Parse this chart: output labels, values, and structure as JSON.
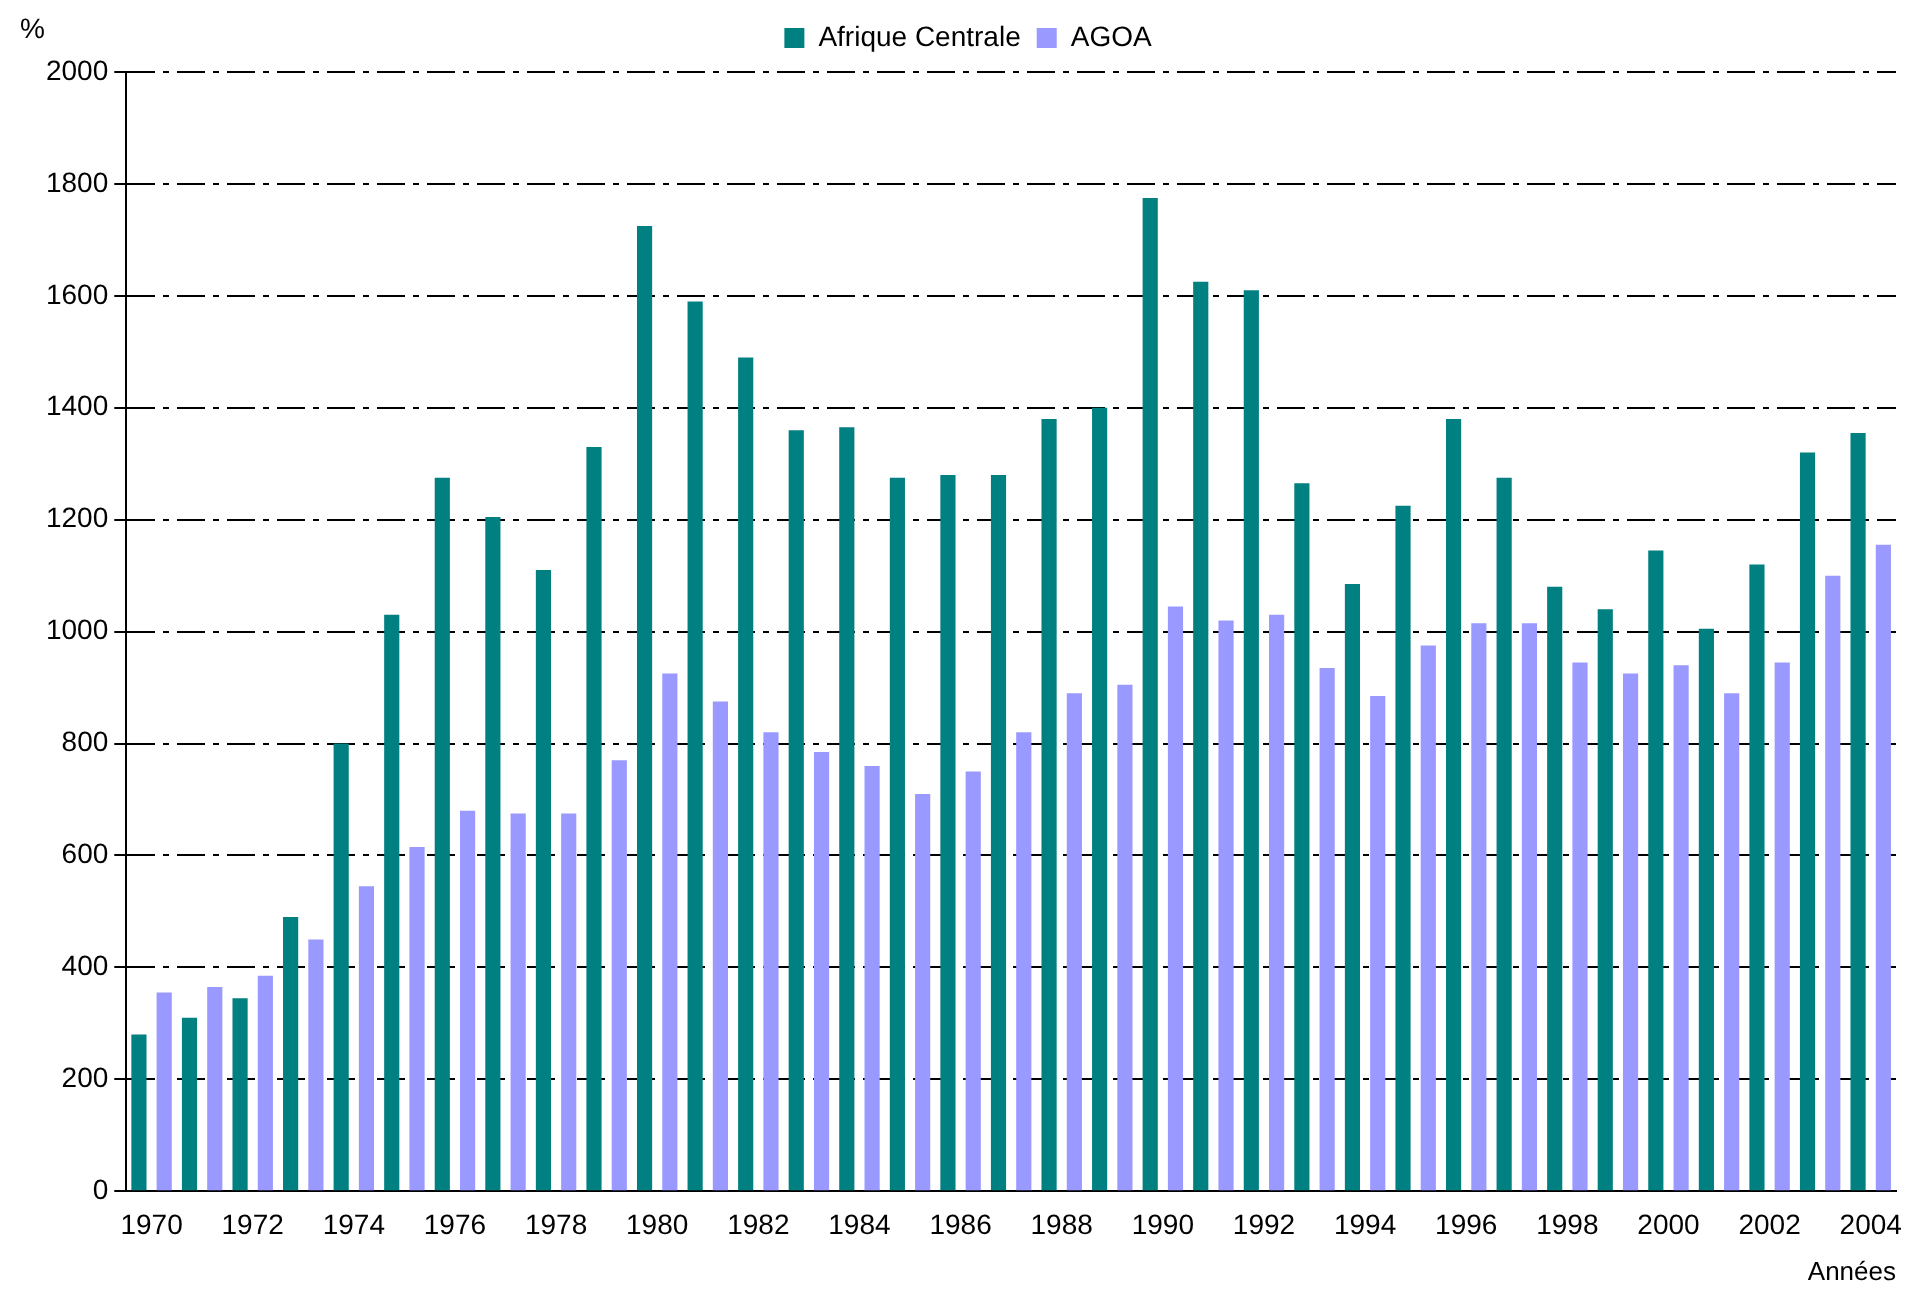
{
  "chart_data": {
    "type": "bar",
    "ylabel": "%",
    "xlabel": "Années",
    "categories": [
      "1970",
      null,
      "1972",
      null,
      "1974",
      null,
      "1976",
      null,
      "1978",
      null,
      "1980",
      null,
      "1982",
      null,
      "1984",
      null,
      "1986",
      null,
      "1988",
      null,
      "1990",
      null,
      "1992",
      null,
      "1994",
      null,
      "1996",
      null,
      "1998",
      null,
      "2000",
      null,
      "2002",
      null,
      "2004"
    ],
    "series": [
      {
        "name": "Afrique Centrale",
        "color": "#008080",
        "values": [
          280,
          310,
          345,
          490,
          800,
          1030,
          1275,
          1205,
          1110,
          1330,
          1725,
          1590,
          1490,
          1360,
          1365,
          1275,
          1280,
          1280,
          1380,
          1400,
          1775,
          1625,
          1610,
          1265,
          1085,
          1225,
          1380,
          1275,
          1080,
          1040,
          1145,
          1005,
          1120,
          1320,
          1355
        ]
      },
      {
        "name": "AGOA",
        "color": "#9999ff",
        "values": [
          355,
          365,
          385,
          450,
          545,
          615,
          680,
          675,
          675,
          770,
          925,
          875,
          820,
          785,
          760,
          710,
          750,
          820,
          890,
          905,
          1045,
          1020,
          1030,
          935,
          885,
          975,
          1015,
          1015,
          945,
          925,
          940,
          890,
          945,
          1100,
          1155
        ]
      }
    ],
    "ylim": [
      0,
      2000
    ],
    "yticks": [
      0,
      200,
      400,
      600,
      800,
      1000,
      1200,
      1400,
      1600,
      1800,
      2000
    ],
    "grid": "y",
    "legend": "top"
  }
}
